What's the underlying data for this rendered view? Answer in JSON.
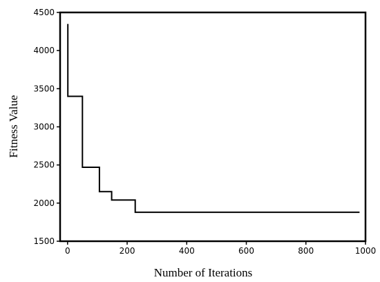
{
  "chart_data": {
    "type": "line",
    "title": "",
    "xlabel": "Number of Iterations",
    "ylabel": "Fitness Value",
    "xlim": [
      -25,
      1000
    ],
    "ylim": [
      1500,
      4500
    ],
    "xticks": [
      0,
      200,
      400,
      600,
      800,
      1000
    ],
    "yticks": [
      1500,
      2000,
      2500,
      3000,
      3500,
      4000,
      4500
    ],
    "xtick_labels": [
      "0",
      "200",
      "400",
      "600",
      "800",
      "1000"
    ],
    "ytick_labels": [
      "1500",
      "2000",
      "2500",
      "3000",
      "3500",
      "4000",
      "4500"
    ],
    "grid": false,
    "line_style": "step",
    "line_color": "#000000",
    "series": [
      {
        "x": [
          1,
          1,
          50,
          50,
          107,
          107,
          148,
          148,
          227,
          227,
          980
        ],
        "y": [
          4350,
          3400,
          3400,
          2470,
          2470,
          2150,
          2150,
          2040,
          2040,
          1880,
          1880
        ]
      }
    ]
  }
}
